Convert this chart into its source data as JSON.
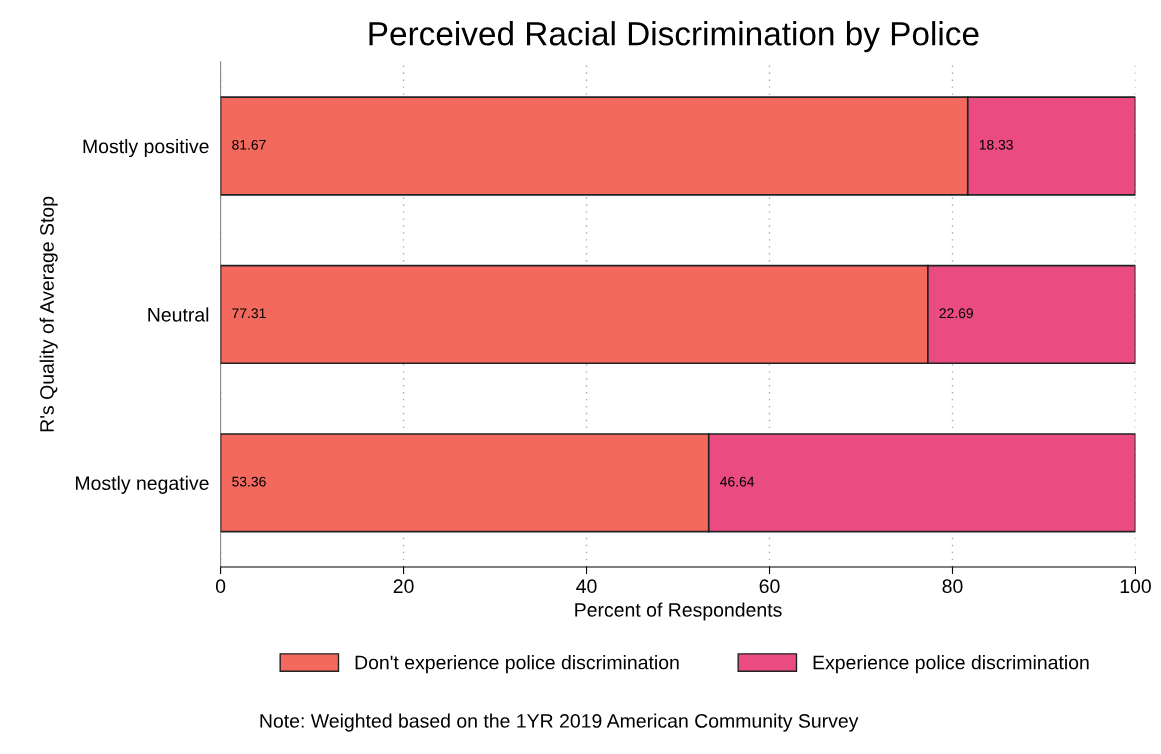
{
  "chart_data": {
    "type": "bar",
    "orientation": "horizontal",
    "stacked": true,
    "title": "Perceived Racial Discrimination by Police",
    "xlabel": "Percent of Respondents",
    "ylabel": "R's Quality of Average Stop",
    "categories": [
      "Mostly positive",
      "Neutral",
      "Mostly negative"
    ],
    "series": [
      {
        "name": "Don't experience police discrimination",
        "color": "#f4695d",
        "values": [
          81.67,
          77.31,
          53.36
        ]
      },
      {
        "name": "Experience police discrimination",
        "color": "#ea4c82",
        "values": [
          18.33,
          22.69,
          46.64
        ]
      }
    ],
    "xlim": [
      0,
      100
    ],
    "xticks": [
      0,
      20,
      40,
      60,
      80,
      100
    ],
    "grid": "x",
    "legend": "bottom",
    "data_labels": true,
    "annotations": [
      "Note: Weighted based on the 1YR 2019 American Community Survey"
    ]
  }
}
